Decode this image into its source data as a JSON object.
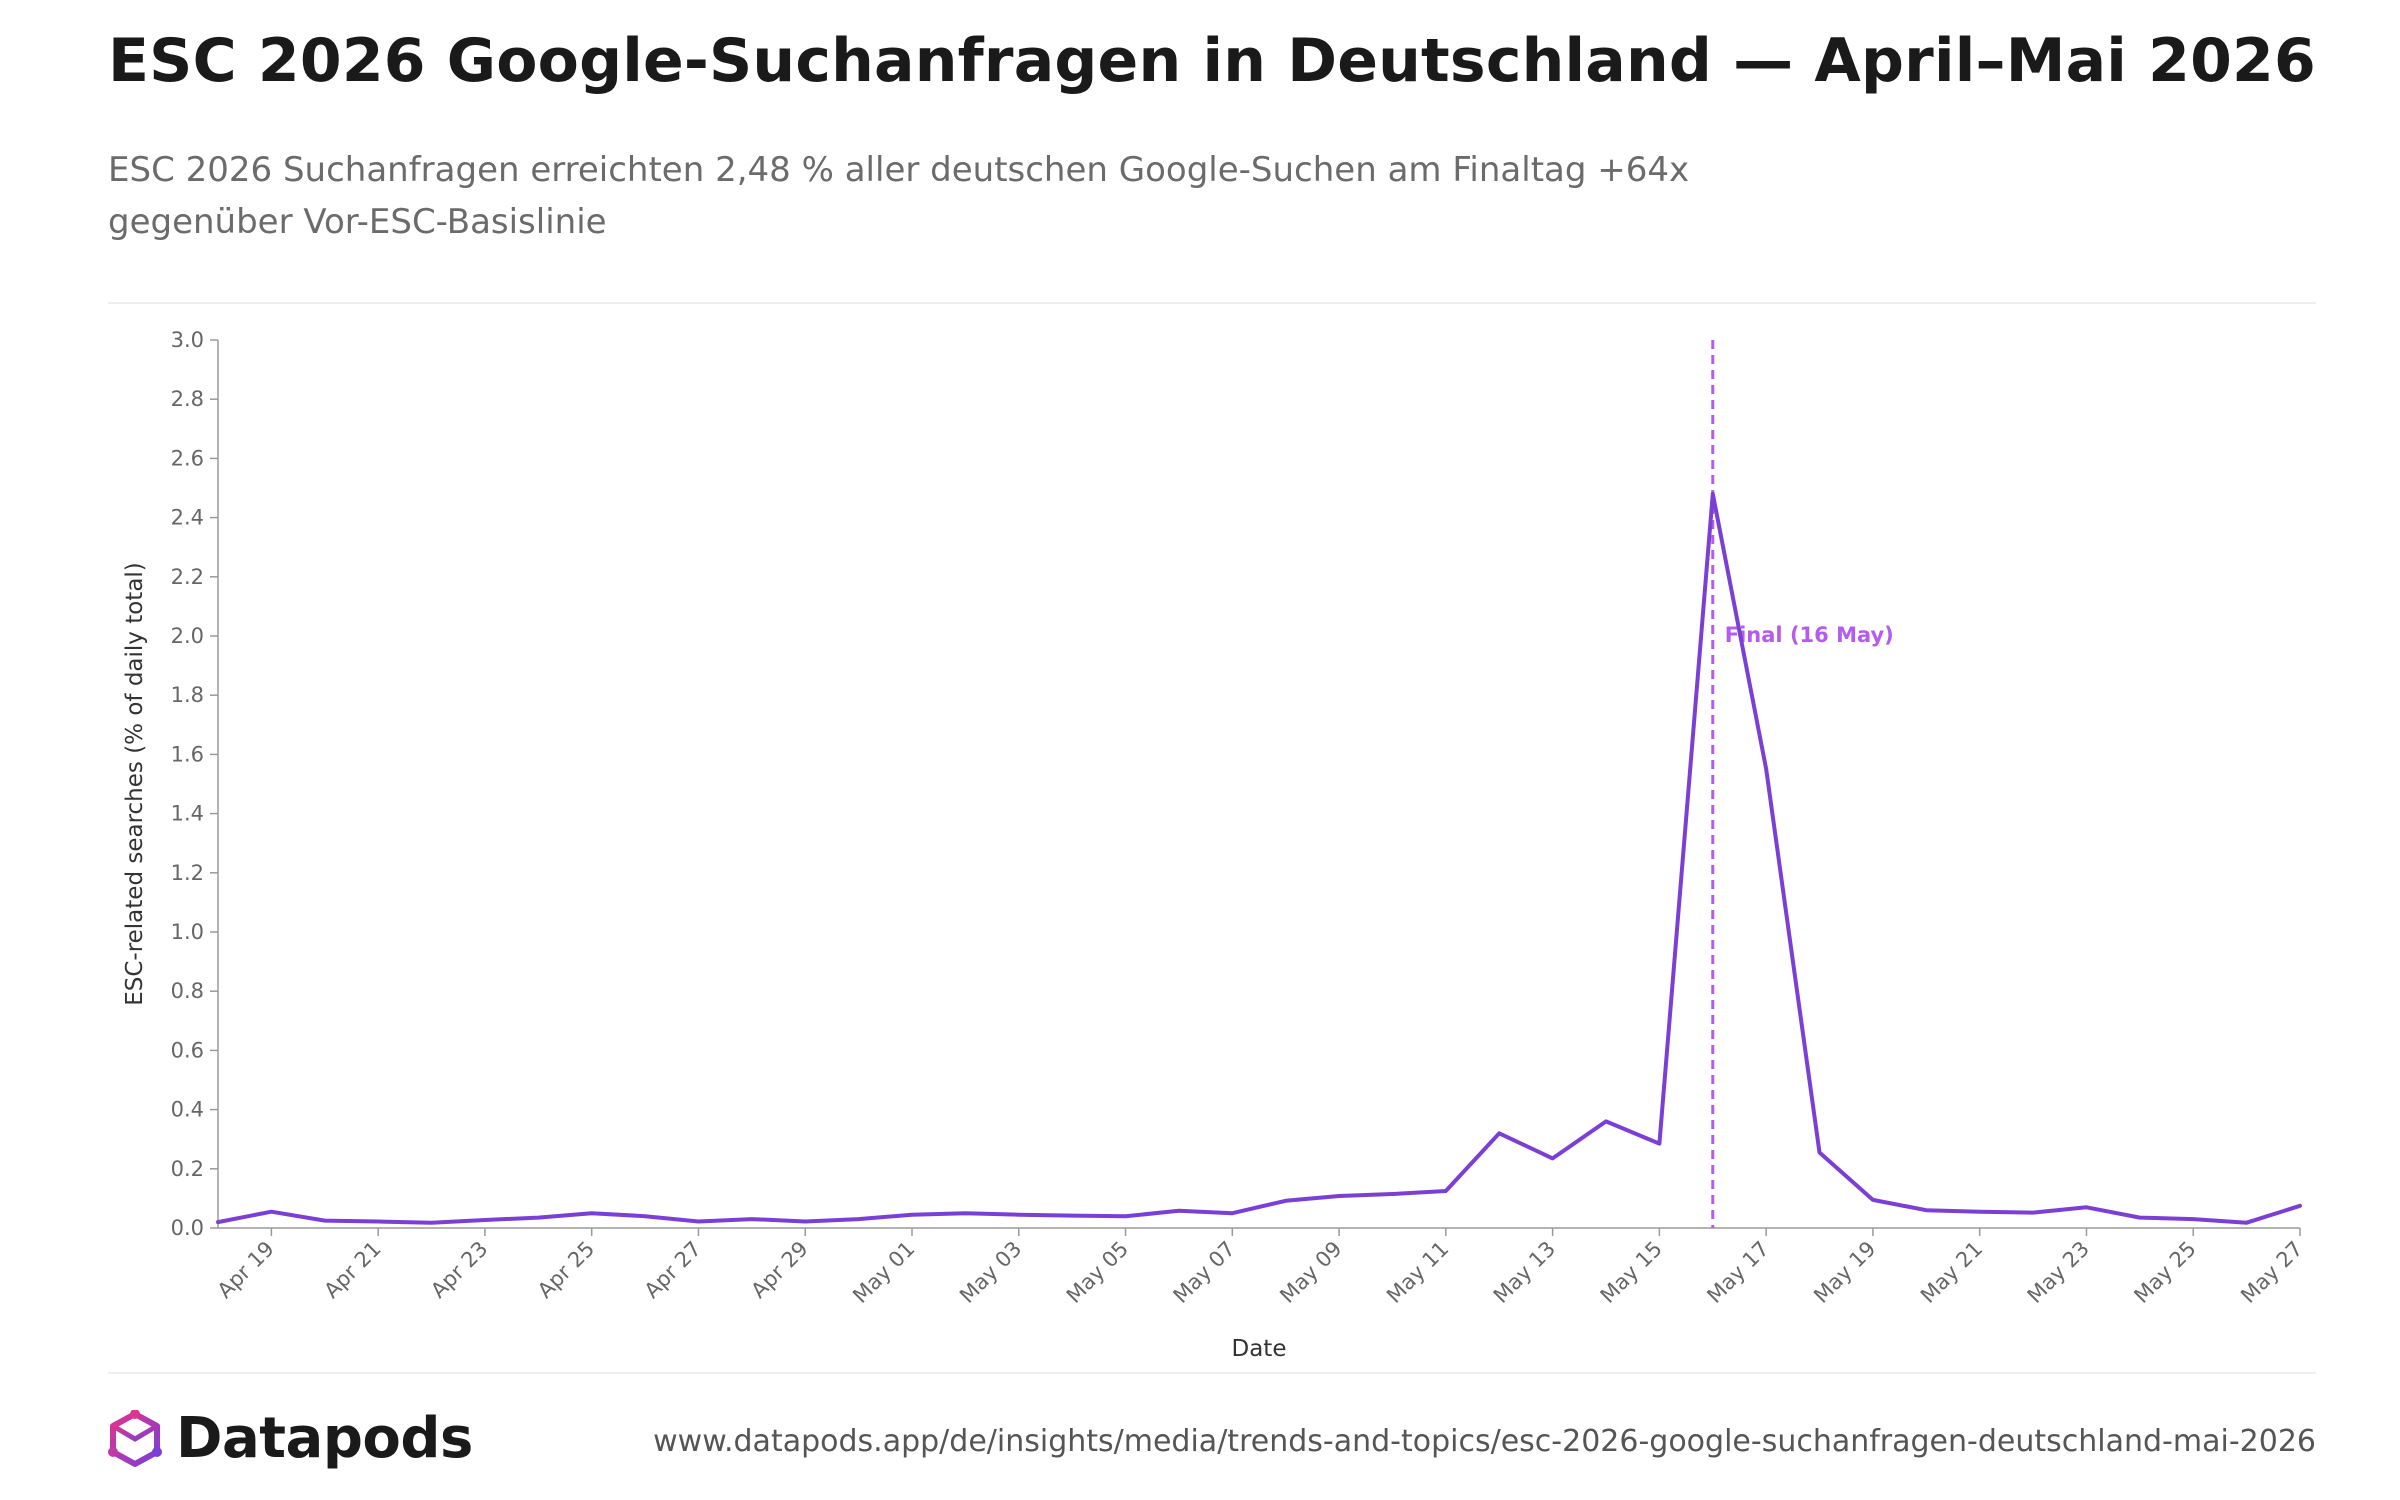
{
  "header": {
    "title": "ESC 2026 Google-Suchanfragen in Deutschland — April–Mai 2026",
    "subtitle": "ESC 2026 Suchanfragen erreichten 2,48 % aller deutschen Google-Suchen am Finaltag +64x gegenüber Vor-ESC-Basislinie"
  },
  "footer": {
    "brand": "Datapods",
    "url": "www.datapods.app/de/insights/media/trends-and-topics/esc-2026-google-suchanfragen-deutschland-mai-2026",
    "logo_icon": "datapods-logo-icon"
  },
  "colors": {
    "line": "#7b3fd6",
    "annotation": "#b45cf0",
    "logo_start": "#e0338f",
    "logo_end": "#7b3fd6"
  },
  "chart_data": {
    "type": "line",
    "xlabel": "Date",
    "ylabel": "ESC-related searches (% of daily total)",
    "ylim": [
      0,
      3.0
    ],
    "yticks": [
      "0.0",
      "0.2",
      "0.4",
      "0.6",
      "0.8",
      "1.0",
      "1.2",
      "1.4",
      "1.6",
      "1.8",
      "2.0",
      "2.2",
      "2.4",
      "2.6",
      "2.8",
      "3.0"
    ],
    "x_start": "2026-04-18",
    "x_end": "2026-05-27",
    "xtick_labels": [
      "Apr 19",
      "Apr 21",
      "Apr 23",
      "Apr 25",
      "Apr 27",
      "Apr 29",
      "May 01",
      "May 03",
      "May 05",
      "May 07",
      "May 09",
      "May 11",
      "May 13",
      "May 15",
      "May 17",
      "May 19",
      "May 21",
      "May 23",
      "May 25",
      "May 27"
    ],
    "xtick_dates": [
      "2026-04-19",
      "2026-04-21",
      "2026-04-23",
      "2026-04-25",
      "2026-04-27",
      "2026-04-29",
      "2026-05-01",
      "2026-05-03",
      "2026-05-05",
      "2026-05-07",
      "2026-05-09",
      "2026-05-11",
      "2026-05-13",
      "2026-05-15",
      "2026-05-17",
      "2026-05-19",
      "2026-05-21",
      "2026-05-23",
      "2026-05-25",
      "2026-05-27"
    ],
    "series": [
      {
        "x": [
          "2026-04-18",
          "2026-04-19",
          "2026-04-20",
          "2026-04-21",
          "2026-04-22",
          "2026-04-23",
          "2026-04-24",
          "2026-04-25",
          "2026-04-26",
          "2026-04-27",
          "2026-04-28",
          "2026-04-29",
          "2026-04-30",
          "2026-05-01",
          "2026-05-02",
          "2026-05-03",
          "2026-05-04",
          "2026-05-05",
          "2026-05-06",
          "2026-05-07",
          "2026-05-08",
          "2026-05-09",
          "2026-05-10",
          "2026-05-11",
          "2026-05-12",
          "2026-05-13",
          "2026-05-14",
          "2026-05-15",
          "2026-05-16",
          "2026-05-17",
          "2026-05-18",
          "2026-05-19",
          "2026-05-20",
          "2026-05-21",
          "2026-05-22",
          "2026-05-23",
          "2026-05-24",
          "2026-05-25",
          "2026-05-26",
          "2026-05-27"
        ],
        "values": [
          0.02,
          0.055,
          0.025,
          0.022,
          0.018,
          0.027,
          0.035,
          0.05,
          0.04,
          0.022,
          0.03,
          0.022,
          0.03,
          0.045,
          0.05,
          0.045,
          0.042,
          0.04,
          0.058,
          0.05,
          0.092,
          0.108,
          0.115,
          0.125,
          0.32,
          0.235,
          0.36,
          0.285,
          2.48,
          1.55,
          0.255,
          0.095,
          0.06,
          0.055,
          0.052,
          0.07,
          0.035,
          0.03,
          0.018,
          0.075
        ]
      }
    ],
    "annotations": [
      {
        "x": "2026-05-16",
        "label": "Final (16 May)",
        "style": "dashed-vertical"
      }
    ],
    "grid": false,
    "legend": "none"
  }
}
